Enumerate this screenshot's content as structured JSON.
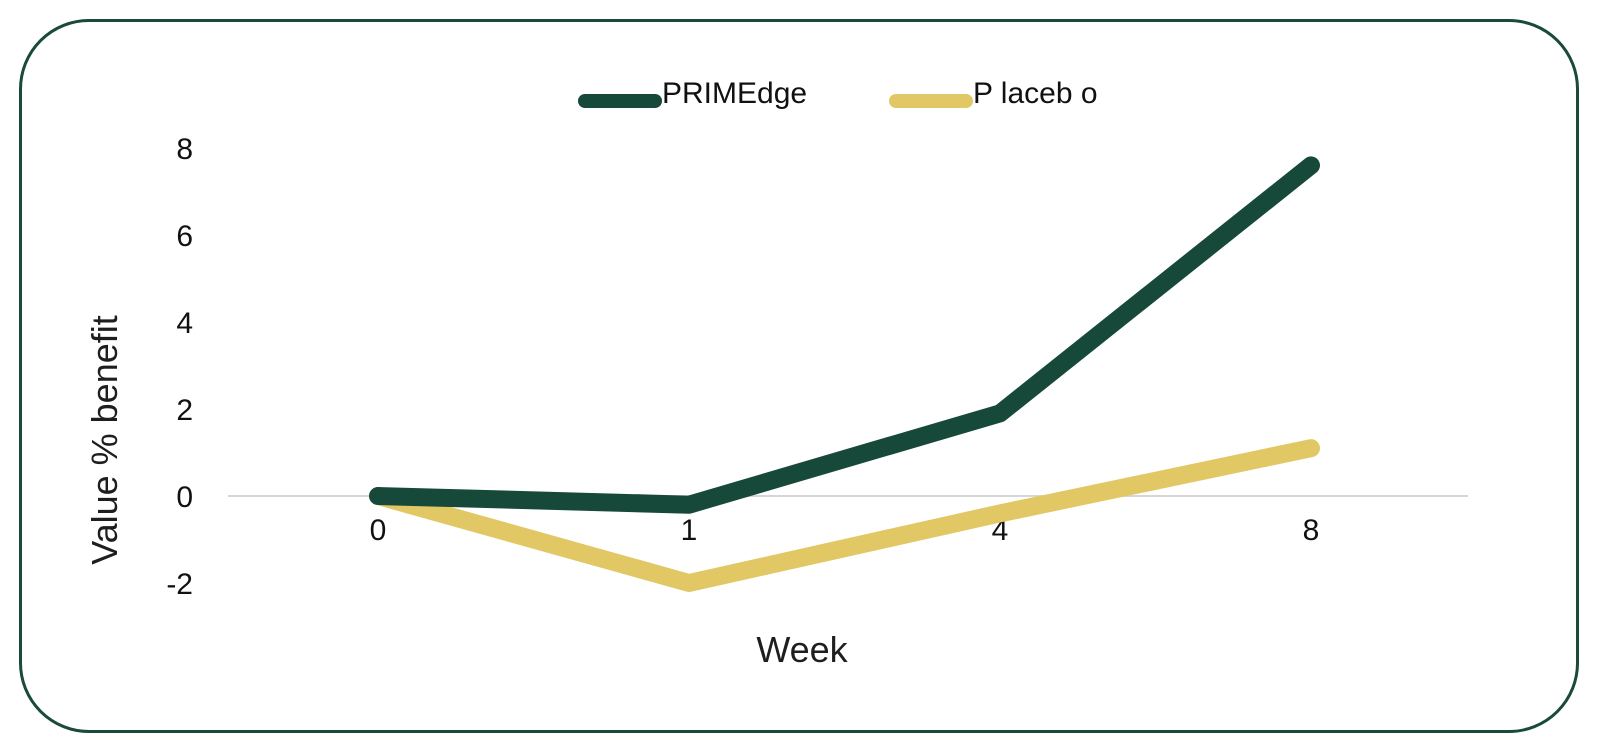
{
  "chart_data": {
    "type": "line",
    "x": [
      "0",
      "1",
      "4",
      "8"
    ],
    "xlabel": "Week",
    "ylabel": "Value % benefit",
    "ylim": [
      -2,
      8
    ],
    "yticks": [
      8,
      6,
      4,
      2,
      0,
      -2
    ],
    "series": [
      {
        "name": "PRIMEdge",
        "color": "#17493a",
        "values": [
          0,
          -0.2,
          1.9,
          7.6
        ]
      },
      {
        "name": "P laceb o",
        "color": "#e2c765",
        "values": [
          0,
          -2.0,
          -0.4,
          1.1
        ]
      }
    ],
    "legend_position": "top-center",
    "grid": false,
    "zero_line": true
  }
}
